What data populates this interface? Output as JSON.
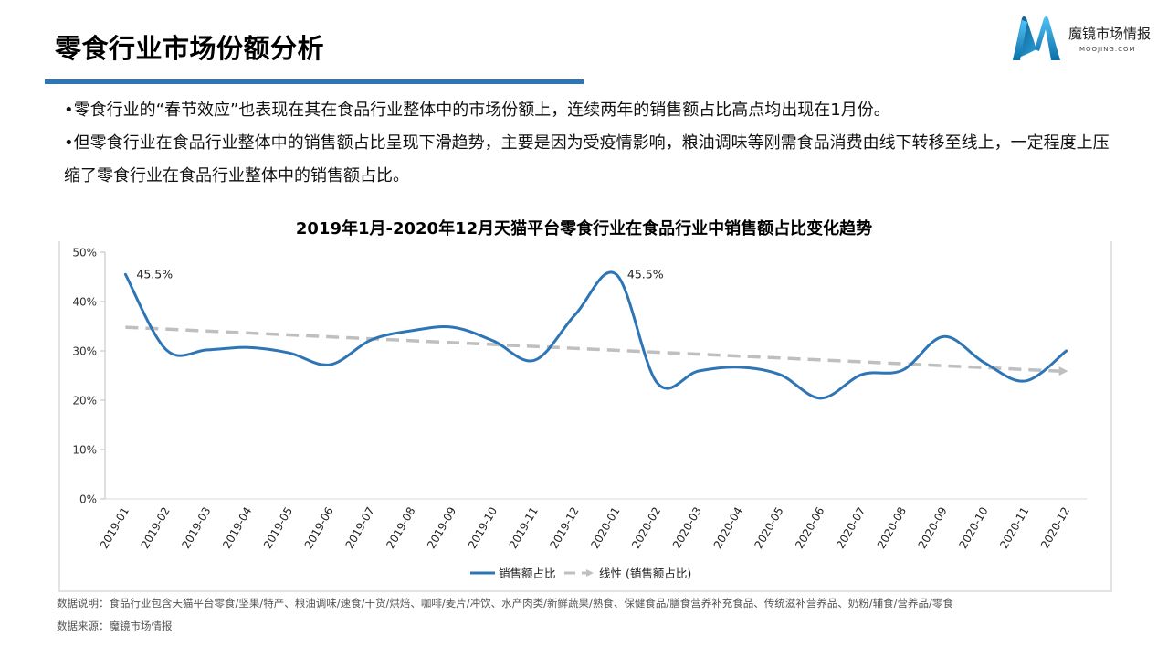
{
  "header": {
    "title": "零食行业市场份额分析",
    "accent_color": "#2e75b6"
  },
  "logo": {
    "name": "魔镜市场情报",
    "subtitle": "MOOJING.COM",
    "icon": "m-logo-icon"
  },
  "bullets": [
    "•零食行业的“春节效应”也表现在其在食品行业整体中的市场份额上，连续两年的销售额占比高点均出现在1月份。",
    "•但零食行业在食品行业整体中的销售额占比呈现下滑趋势，主要是因为受疫情影响，粮油调味等刚需食品消费由线下转移至线上，一定程度上压缩了零食行业在食品行业整体中的销售额占比。"
  ],
  "chart_data": {
    "type": "line",
    "title": "2019年1月-2020年12月天猫平台零食行业在食品行业中销售额占比变化趋势",
    "xlabel": "",
    "ylabel": "",
    "ylim": [
      0,
      50
    ],
    "yticks": [
      "0%",
      "10%",
      "20%",
      "30%",
      "40%",
      "50%"
    ],
    "grid": false,
    "legend_position": "bottom",
    "categories": [
      "2019-01",
      "2019-02",
      "2019-03",
      "2019-04",
      "2019-05",
      "2019-06",
      "2019-07",
      "2019-08",
      "2019-09",
      "2019-10",
      "2019-11",
      "2019-12",
      "2020-01",
      "2020-02",
      "2020-03",
      "2020-04",
      "2020-05",
      "2020-06",
      "2020-07",
      "2020-08",
      "2020-09",
      "2020-10",
      "2020-11",
      "2020-12"
    ],
    "series": [
      {
        "name": "销售额占比",
        "color": "#2e75b6",
        "style": "solid-smooth",
        "values": [
          45.5,
          30.2,
          30.2,
          30.7,
          29.6,
          27.2,
          32.2,
          34.1,
          34.8,
          32.0,
          28.1,
          37.4,
          45.5,
          23.5,
          25.9,
          26.7,
          25.2,
          20.4,
          25.2,
          26.1,
          32.9,
          27.6,
          23.9,
          30.0
        ]
      },
      {
        "name": "线性 (销售额占比)",
        "color": "#bfbfbf",
        "style": "dashed-arrow",
        "values": [
          34.8,
          34.4,
          34.0,
          33.6,
          33.3,
          32.9,
          32.5,
          32.1,
          31.7,
          31.3,
          30.9,
          30.5,
          30.2,
          29.8,
          29.4,
          29.0,
          28.6,
          28.2,
          27.8,
          27.4,
          27.1,
          26.7,
          26.3,
          25.9
        ]
      }
    ],
    "annotations": [
      {
        "category": "2019-01",
        "text": "45.5%"
      },
      {
        "category": "2020-01",
        "text": "45.5%"
      }
    ]
  },
  "footer": {
    "note": "数据说明：食品行业包含天猫平台零食/坚果/特产、粮油调味/速食/干货/烘焙、咖啡/麦片/冲饮、水产肉类/新鲜蔬果/熟食、保健食品/膳食营养补充食品、传统滋补营养品、奶粉/辅食/营养品/零食",
    "source": "数据来源：魔镜市场情报"
  }
}
